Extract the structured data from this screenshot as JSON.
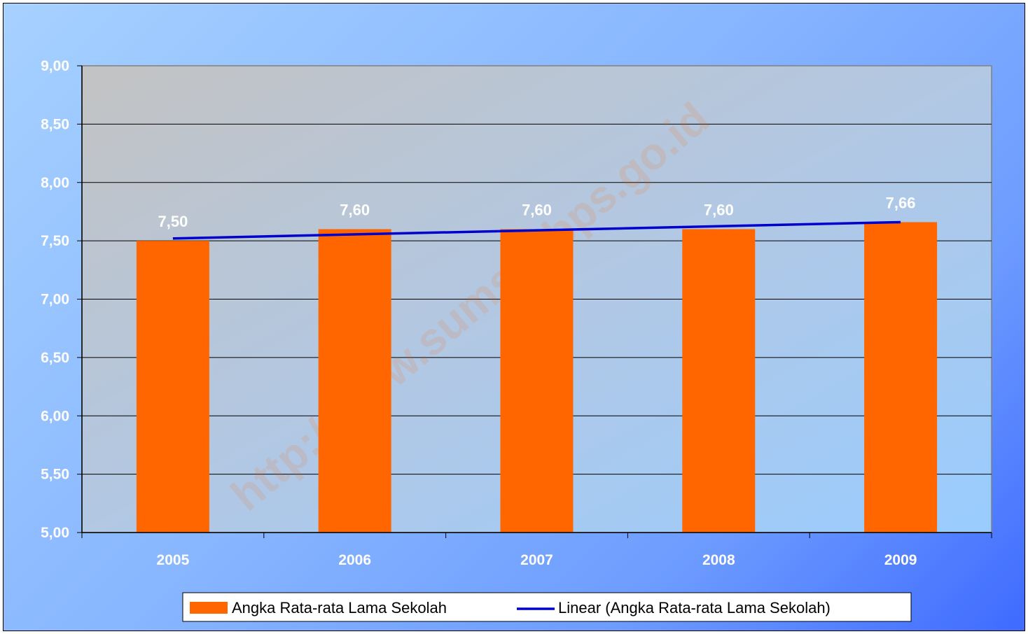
{
  "colors": {
    "bar": "#ff6600",
    "trendline": "#0000cc",
    "label": "#ffffff",
    "grid": "#000000"
  },
  "watermark": "http://www.sumsel.bps.go.id",
  "chart_data": {
    "type": "bar",
    "title": "",
    "xlabel": "",
    "ylabel": "",
    "categories": [
      "2005",
      "2006",
      "2007",
      "2008",
      "2009"
    ],
    "series": [
      {
        "name": "Angka Rata-rata Lama Sekolah",
        "values": [
          7.5,
          7.6,
          7.6,
          7.6,
          7.66
        ],
        "value_labels": [
          "7,50",
          "7,60",
          "7,60",
          "7,60",
          "7,66"
        ]
      }
    ],
    "trendline": {
      "name": "Linear (Angka Rata-rata Lama Sekolah)",
      "type": "linear",
      "start": 7.52,
      "end": 7.66
    },
    "ylim": [
      5.0,
      9.0
    ],
    "ytick_values": [
      5.0,
      5.5,
      6.0,
      6.5,
      7.0,
      7.5,
      8.0,
      8.5,
      9.0
    ],
    "ytick_labels": [
      "5,00",
      "5,50",
      "6,00",
      "6,50",
      "7,00",
      "7,50",
      "8,00",
      "8,50",
      "9,00"
    ],
    "grid": true,
    "legend_position": "bottom"
  }
}
